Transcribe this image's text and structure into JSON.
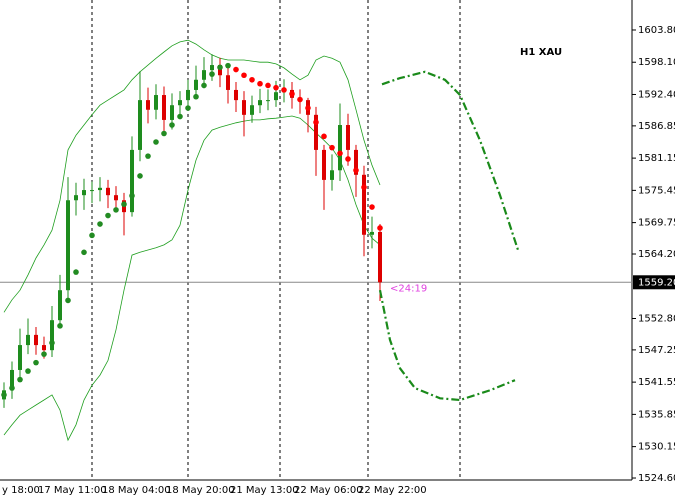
{
  "chart_data": {
    "type": "candlestick",
    "title": "H1 XAU",
    "timer": "<24:19",
    "xlim": [
      -0.5,
      78.5
    ],
    "ylim": [
      1524.25,
      1609.1
    ],
    "xgrid": [
      11,
      23,
      34.5,
      45.5,
      57
    ],
    "xlabels": [
      "y 18:00",
      "17 May 11:00",
      "18 May 04:00",
      "18 May 20:00",
      "21 May 13:00",
      "22 May 06:00",
      "22 May 22:00"
    ],
    "yticks": [
      {
        "value": 1603.8,
        "label": "1603.80"
      },
      {
        "value": 1598.1,
        "label": "1598.10"
      },
      {
        "value": 1592.4,
        "label": "1592.40"
      },
      {
        "value": 1586.85,
        "label": "1586.85"
      },
      {
        "value": 1581.15,
        "label": "1581.15"
      },
      {
        "value": 1575.45,
        "label": "1575.45"
      },
      {
        "value": 1569.75,
        "label": "1569.75"
      },
      {
        "value": 1564.2,
        "label": "1564.20"
      },
      {
        "value": 1552.8,
        "label": "1552.80"
      },
      {
        "value": 1547.25,
        "label": "1547.25"
      },
      {
        "value": 1541.55,
        "label": "1541.55"
      },
      {
        "value": 1535.85,
        "label": "1535.85"
      },
      {
        "value": 1530.15,
        "label": "1530.15"
      },
      {
        "value": 1524.6,
        "label": "1524.60"
      }
    ],
    "current_price": {
      "value": 1559.2,
      "label": "1559.20"
    },
    "up_color": "#1e8c1e",
    "down_color": "#dd0000",
    "open": [
      1538.5,
      1540.1,
      1543.7,
      1548.1,
      1549.9,
      1548.1,
      1547.2,
      1552.5,
      1557.8,
      1573.7,
      1574.6,
      1575.5,
      1575.5,
      1575.9,
      1574.6,
      1573.7,
      1571.6,
      1582.6,
      1591.4,
      1589.7,
      1592.3,
      1587.9,
      1590.5,
      1591.4,
      1593.2,
      1595.0,
      1596.7,
      1597.6,
      1595.8,
      1593.2,
      1591.4,
      1588.8,
      1590.5,
      1591.4,
      1591.4,
      1592.8,
      1593.2,
      1591.8,
      1591.4,
      1588.8,
      1582.6,
      1577.3,
      1579.0,
      1587.0,
      1582.6,
      1578.2,
      1567.6,
      1568.1
    ],
    "high": [
      1541.5,
      1545.2,
      1551.0,
      1552.8,
      1551.3,
      1549.6,
      1555.0,
      1560.5,
      1577.8,
      1576.8,
      1577.5,
      1577.0,
      1577.8,
      1577.3,
      1576.2,
      1575.0,
      1585.0,
      1596.5,
      1593.6,
      1594.2,
      1593.8,
      1592.6,
      1593.0,
      1595.0,
      1597.5,
      1599.0,
      1599.5,
      1598.9,
      1597.5,
      1594.6,
      1593.0,
      1592.2,
      1593.4,
      1593.3,
      1594.8,
      1595.1,
      1594.6,
      1593.3,
      1591.8,
      1590.2,
      1583.5,
      1581.8,
      1590.8,
      1589.0,
      1583.5,
      1579.8,
      1570.8,
      1569.5
    ],
    "low": [
      1537.0,
      1538.6,
      1542.0,
      1546.5,
      1546.4,
      1545.7,
      1546.0,
      1551.2,
      1556.3,
      1571.0,
      1572.0,
      1573.2,
      1573.5,
      1572.3,
      1571.8,
      1567.5,
      1570.8,
      1580.6,
      1587.3,
      1588.0,
      1585.3,
      1586.2,
      1588.5,
      1589.7,
      1591.8,
      1593.5,
      1594.8,
      1593.7,
      1590.8,
      1589.3,
      1585.0,
      1587.4,
      1589.1,
      1589.6,
      1590.2,
      1591.0,
      1589.9,
      1589.0,
      1585.7,
      1578.0,
      1572.0,
      1575.4,
      1577.1,
      1579.8,
      1574.3,
      1563.8,
      1565.2,
      1555.9
    ],
    "close": [
      1540.1,
      1543.7,
      1548.1,
      1549.9,
      1548.1,
      1547.2,
      1552.5,
      1557.8,
      1573.7,
      1574.6,
      1575.5,
      1575.5,
      1575.9,
      1574.6,
      1573.7,
      1571.6,
      1582.6,
      1591.4,
      1589.7,
      1592.3,
      1587.9,
      1590.5,
      1591.4,
      1593.2,
      1595.0,
      1596.7,
      1597.6,
      1595.8,
      1593.2,
      1591.4,
      1588.8,
      1590.5,
      1591.4,
      1591.4,
      1592.8,
      1593.2,
      1591.8,
      1591.4,
      1588.8,
      1582.6,
      1577.3,
      1579.0,
      1587.0,
      1582.6,
      1578.2,
      1567.6,
      1568.1,
      1559.2
    ],
    "ma": {
      "up_color": "#228b22",
      "down_color": "#ff0000",
      "values": [
        1539.3,
        1540.5,
        1542.0,
        1543.5,
        1545.0,
        1546.5,
        1548.5,
        1551.5,
        1556.0,
        1561.0,
        1564.5,
        1567.5,
        1569.5,
        1571.0,
        1572.0,
        1573.0,
        1574.5,
        1578.0,
        1581.5,
        1584.0,
        1585.5,
        1587.0,
        1588.5,
        1590.0,
        1592.0,
        1594.0,
        1596.0,
        1597.2,
        1597.5,
        1596.8,
        1595.8,
        1595.0,
        1594.3,
        1594.0,
        1593.6,
        1593.2,
        1592.5,
        1591.5,
        1590.0,
        1587.5,
        1585.0,
        1583.0,
        1582.0,
        1581.0,
        1579.0,
        1576.0,
        1572.5,
        1568.8
      ]
    },
    "bands": {
      "color": "#1e9e1e",
      "upper": [
        1553.9,
        1556.1,
        1557.8,
        1560.5,
        1563.5,
        1565.8,
        1568.4,
        1573.7,
        1582.6,
        1585.2,
        1587.0,
        1588.8,
        1590.5,
        1591.4,
        1592.3,
        1593.2,
        1595.0,
        1596.4,
        1597.6,
        1598.8,
        1599.9,
        1601.0,
        1601.7,
        1602.0,
        1601.3,
        1600.3,
        1599.4,
        1598.8,
        1598.5,
        1598.5,
        1598.5,
        1598.3,
        1598.1,
        1598.1,
        1597.8,
        1597.1,
        1596.0,
        1595.0,
        1595.8,
        1598.5,
        1599.2,
        1598.8,
        1598.1,
        1595.0,
        1589.7,
        1584.3,
        1579.9,
        1576.4
      ],
      "lower": [
        1532.2,
        1534.0,
        1535.7,
        1536.6,
        1537.5,
        1538.4,
        1539.3,
        1536.6,
        1531.3,
        1534.0,
        1538.4,
        1541.0,
        1542.8,
        1545.4,
        1550.8,
        1557.8,
        1564.0,
        1564.5,
        1564.9,
        1565.3,
        1565.8,
        1566.7,
        1569.3,
        1575.5,
        1580.8,
        1584.3,
        1586.1,
        1586.6,
        1587.0,
        1587.4,
        1587.7,
        1587.9,
        1587.9,
        1588.1,
        1588.2,
        1588.4,
        1588.6,
        1588.2,
        1587.0,
        1585.6,
        1584.3,
        1582.9,
        1580.8,
        1577.3,
        1572.9,
        1569.3,
        1567.0,
        1565.8
      ]
    },
    "forecast": [
      {
        "color": "#1a8a1a",
        "x": [
          47.25,
          49.5,
          52.63,
          55.13,
          57,
          59.5,
          62,
          64.25
        ],
        "values": [
          1594.2,
          1595.3,
          1596.4,
          1595.0,
          1592.3,
          1584.3,
          1574.6,
          1564.9
        ]
      },
      {
        "color": "#1a8a1a",
        "x": [
          47,
          48.25,
          49.5,
          51.38,
          54.5,
          57,
          60.75,
          63.88
        ],
        "values": [
          1557.8,
          1549.0,
          1544.0,
          1540.5,
          1538.7,
          1538.4,
          1540.1,
          1541.9
        ]
      }
    ]
  }
}
